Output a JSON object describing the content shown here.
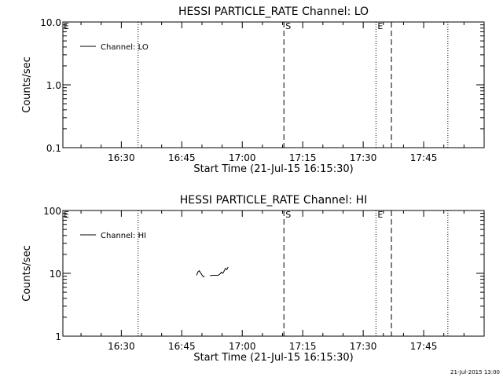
{
  "footer_stamp": "21-Jul-2015 13:00",
  "chart_data": [
    {
      "type": "line",
      "title": "HESSI PARTICLE_RATE Channel: LO",
      "xlabel": "Start Time (21-Jul-15 16:15:30)",
      "ylabel": "Counts/sec",
      "x_unit": "time of day, 21-Jul-15",
      "xlim": [
        "16:15:30",
        "18:00:00"
      ],
      "ylim": [
        0.1,
        10.0
      ],
      "yscale": "log",
      "grid": false,
      "legend_position": "top-left",
      "x_ticks": [
        "16:30",
        "16:45",
        "17:00",
        "17:15",
        "17:30",
        "17:45"
      ],
      "y_ticks": [
        "0.1",
        "1.0",
        "10.0"
      ],
      "series": [
        {
          "name": "Channel: LO",
          "points": []
        }
      ],
      "markers": [
        {
          "time": "16:34:10",
          "style": "dotted",
          "label": ""
        },
        {
          "time": "17:10:20",
          "style": "dashed",
          "label": "S"
        },
        {
          "time": "17:33:10",
          "style": "dotted",
          "label": "E"
        },
        {
          "time": "17:37:00",
          "style": "dashed",
          "label": ""
        },
        {
          "time": "17:51:00",
          "style": "dotted",
          "label": ""
        }
      ],
      "annotations": [
        {
          "time": "16:15:30",
          "label": "E"
        }
      ]
    },
    {
      "type": "line",
      "title": "HESSI PARTICLE_RATE Channel: HI",
      "xlabel": "Start Time (21-Jul-15 16:15:30)",
      "ylabel": "Counts/sec",
      "x_unit": "time of day, 21-Jul-15",
      "xlim": [
        "16:15:30",
        "18:00:00"
      ],
      "ylim": [
        1,
        100
      ],
      "yscale": "log",
      "grid": false,
      "legend_position": "top-left",
      "x_ticks": [
        "16:30",
        "16:45",
        "17:00",
        "17:15",
        "17:30",
        "17:45"
      ],
      "y_ticks": [
        "1",
        "10",
        "100"
      ],
      "series": [
        {
          "name": "Channel: HI",
          "segments": [
            [
              [
                "16:48:40",
                9.3
              ],
              [
                "16:49:00",
                10.5
              ],
              [
                "16:49:20",
                11.0
              ],
              [
                "16:49:40",
                10.2
              ],
              [
                "16:50:00",
                9.4
              ],
              [
                "16:50:20",
                8.8
              ],
              [
                "16:50:40",
                9.0
              ]
            ],
            [
              [
                "16:52:00",
                9.2
              ],
              [
                "16:53:00",
                9.3
              ],
              [
                "16:54:00",
                9.3
              ],
              [
                "16:54:30",
                9.8
              ],
              [
                "16:54:50",
                10.4
              ],
              [
                "16:55:10",
                10.0
              ],
              [
                "16:55:30",
                10.9
              ],
              [
                "16:55:50",
                12.0
              ],
              [
                "16:56:10",
                11.5
              ],
              [
                "16:56:30",
                12.6
              ]
            ]
          ]
        }
      ],
      "markers": [
        {
          "time": "16:34:10",
          "style": "dotted",
          "label": ""
        },
        {
          "time": "17:10:20",
          "style": "dashed",
          "label": "S"
        },
        {
          "time": "17:33:10",
          "style": "dotted",
          "label": "E"
        },
        {
          "time": "17:37:00",
          "style": "dashed",
          "label": ""
        },
        {
          "time": "17:51:00",
          "style": "dotted",
          "label": ""
        }
      ],
      "annotations": [
        {
          "time": "16:15:30",
          "label": "E"
        }
      ]
    }
  ]
}
